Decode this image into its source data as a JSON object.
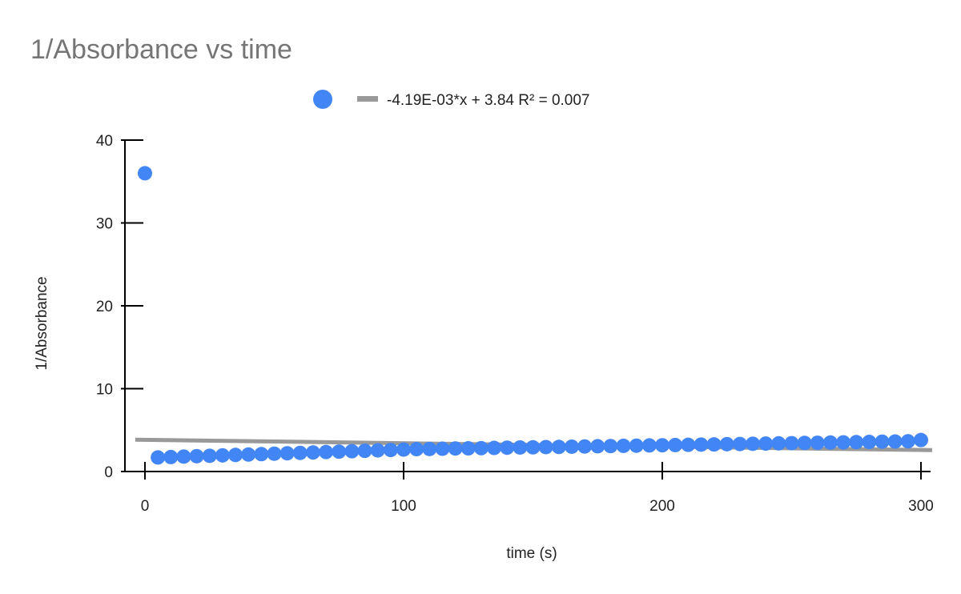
{
  "chart_data": {
    "type": "scatter",
    "title": "1/Absorbance vs time",
    "xlabel": "time (s)",
    "ylabel": "1/Absorbance",
    "xlim": [
      0,
      300
    ],
    "ylim": [
      0,
      40
    ],
    "x_ticks": [
      0,
      100,
      200,
      300
    ],
    "y_ticks": [
      0,
      10,
      20,
      30,
      40
    ],
    "grid": false,
    "legend_position": "top",
    "series": [
      {
        "kind": "points",
        "color": "#4285F4",
        "x": [
          0,
          5,
          10,
          15,
          20,
          25,
          30,
          35,
          40,
          45,
          50,
          55,
          60,
          65,
          70,
          75,
          80,
          85,
          90,
          95,
          100,
          105,
          110,
          115,
          120,
          125,
          130,
          135,
          140,
          145,
          150,
          155,
          160,
          165,
          170,
          175,
          180,
          185,
          190,
          195,
          200,
          205,
          210,
          215,
          220,
          225,
          230,
          235,
          240,
          245,
          250,
          255,
          260,
          265,
          270,
          275,
          280,
          285,
          290,
          295,
          300
        ],
        "y": [
          36.0,
          1.7,
          1.75,
          1.8,
          1.85,
          1.9,
          1.95,
          2.0,
          2.05,
          2.1,
          2.15,
          2.2,
          2.25,
          2.3,
          2.35,
          2.4,
          2.45,
          2.5,
          2.55,
          2.6,
          2.65,
          2.7,
          2.72,
          2.75,
          2.78,
          2.8,
          2.82,
          2.85,
          2.88,
          2.9,
          2.92,
          2.95,
          2.97,
          3.0,
          3.02,
          3.05,
          3.07,
          3.1,
          3.12,
          3.15,
          3.17,
          3.2,
          3.22,
          3.25,
          3.27,
          3.3,
          3.32,
          3.35,
          3.37,
          3.4,
          3.42,
          3.45,
          3.47,
          3.5,
          3.52,
          3.55,
          3.57,
          3.6,
          3.62,
          3.65,
          3.8
        ]
      },
      {
        "kind": "trendline",
        "name": "-4.19E-03*x + 3.84 R² = 0.007",
        "color": "#999999",
        "slope": -0.00419,
        "intercept": 3.84
      }
    ]
  }
}
